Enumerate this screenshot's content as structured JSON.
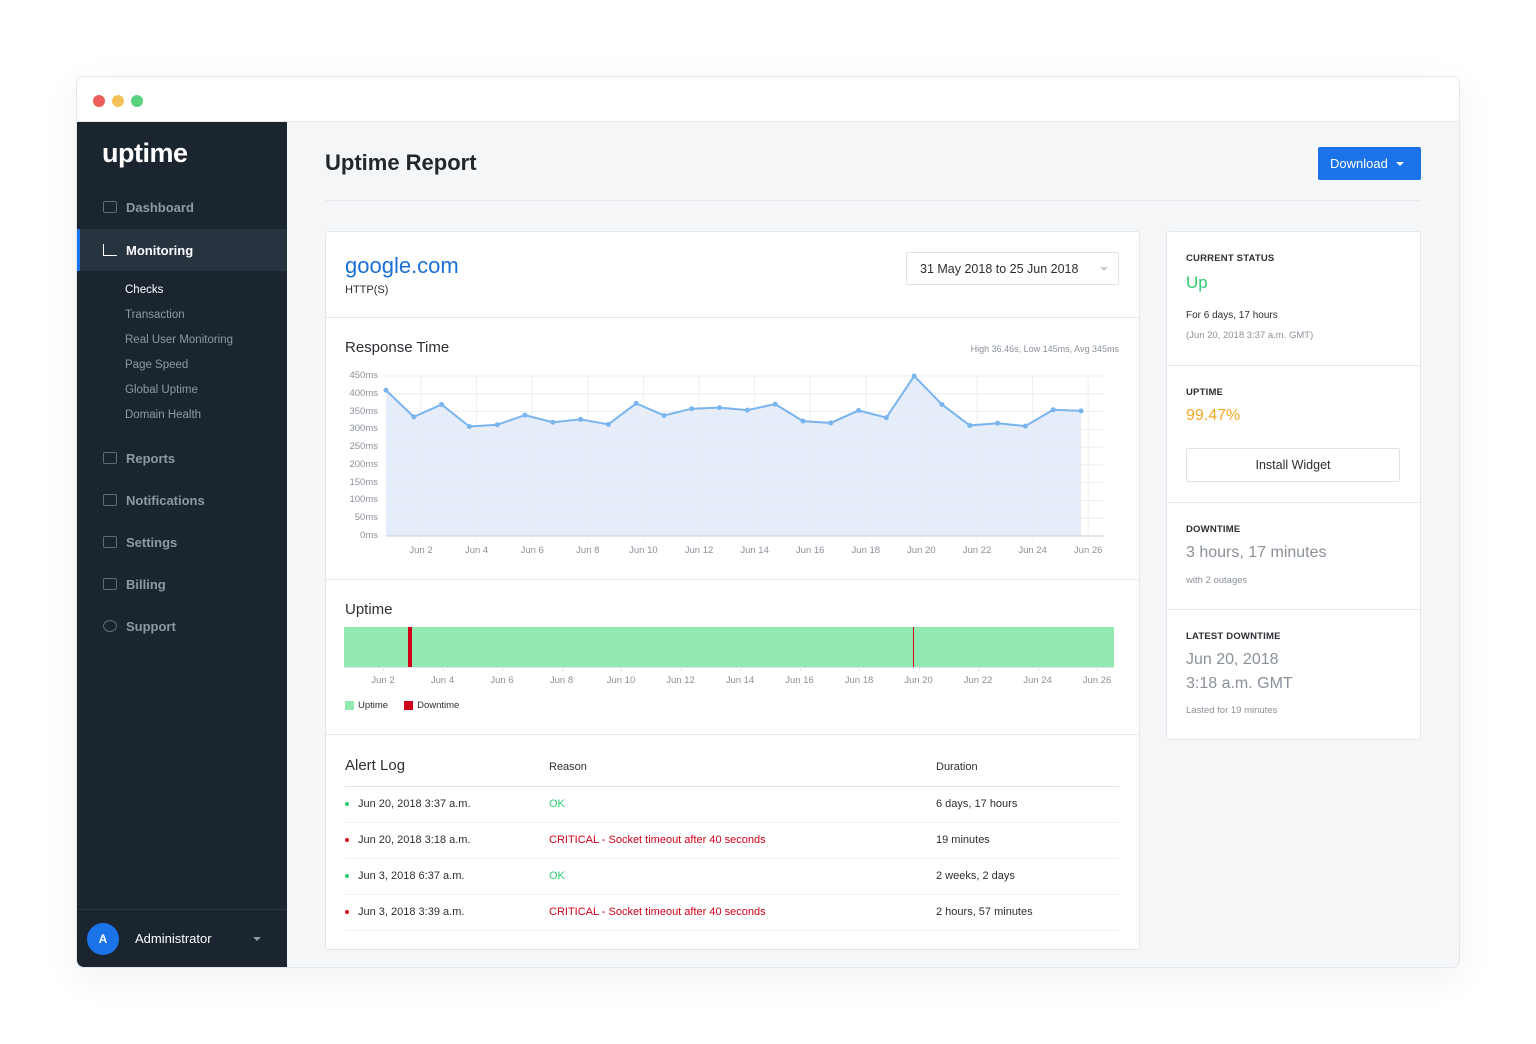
{
  "window": {
    "dots": [
      "#ee5f5b",
      "#f5c15a",
      "#5ad27d"
    ]
  },
  "sidebar": {
    "logo": "uptime",
    "items": [
      {
        "label": "Dashboard",
        "icon": "dashboard-icon"
      },
      {
        "label": "Monitoring",
        "icon": "bar-chart-icon",
        "active": true
      },
      {
        "label": "Reports",
        "icon": "reports-icon"
      },
      {
        "label": "Notifications",
        "icon": "chat-icon"
      },
      {
        "label": "Settings",
        "icon": "list-icon"
      },
      {
        "label": "Billing",
        "icon": "credit-card-icon"
      },
      {
        "label": "Support",
        "icon": "lifebuoy-icon"
      }
    ],
    "subitems": [
      "Checks",
      "Transaction",
      "Real User Monitoring",
      "Page Speed",
      "Global Uptime",
      "Domain Health"
    ],
    "user": {
      "initial": "A",
      "name": "Administrator"
    }
  },
  "header": {
    "title": "Uptime Report",
    "download": "Download"
  },
  "monitor": {
    "name": "google.com",
    "type": "HTTP(S)",
    "date_range": "31 May 2018 to 25 Jun 2018"
  },
  "response": {
    "title": "Response Time",
    "summary": "High 36.46s, Low 145ms, Avg 345ms"
  },
  "uptime_section": {
    "title": "Uptime",
    "legend": [
      "Uptime",
      "Downtime"
    ]
  },
  "colors": {
    "accent": "#1a73e8",
    "up": "#2ecc71",
    "uptime_bar": "#93e9b2",
    "down": "#d0021b",
    "uptime_pct": "#f5a623",
    "line": "#7ab4ef",
    "area": "#dfeaf8"
  },
  "chart_data": [
    {
      "type": "area",
      "title": "Response Time",
      "ylim": [
        0,
        450
      ],
      "yticks": [
        "450ms",
        "400ms",
        "350ms",
        "300ms",
        "250ms",
        "200ms",
        "150ms",
        "100ms",
        "50ms",
        "0ms"
      ],
      "xticks": [
        "Jun 2",
        "Jun 4",
        "Jun 6",
        "Jun 8",
        "Jun 10",
        "Jun 12",
        "Jun 14",
        "Jun 16",
        "Jun 18",
        "Jun 20",
        "Jun 22",
        "Jun 24",
        "Jun 26"
      ],
      "x": [
        "May 31",
        "Jun 1",
        "Jun 2",
        "Jun 3",
        "Jun 4",
        "Jun 5",
        "Jun 6",
        "Jun 7",
        "Jun 8",
        "Jun 9",
        "Jun 10",
        "Jun 11",
        "Jun 12",
        "Jun 13",
        "Jun 14",
        "Jun 15",
        "Jun 16",
        "Jun 17",
        "Jun 18",
        "Jun 19",
        "Jun 20",
        "Jun 21",
        "Jun 22",
        "Jun 23",
        "Jun 24",
        "Jun 25"
      ],
      "values": [
        410,
        335,
        370,
        308,
        313,
        340,
        320,
        328,
        314,
        373,
        339,
        358,
        361,
        354,
        371,
        323,
        318,
        353,
        333,
        450,
        370,
        311,
        317,
        309,
        355,
        352
      ],
      "grid": true
    },
    {
      "type": "timeline",
      "title": "Uptime",
      "xticks": [
        "Jun 2",
        "Jun 4",
        "Jun 6",
        "Jun 8",
        "Jun 10",
        "Jun 12",
        "Jun 14",
        "Jun 16",
        "Jun 18",
        "Jun 20",
        "Jun 22",
        "Jun 24",
        "Jun 26"
      ],
      "downtime": [
        {
          "start": "Jun 3, 2018 3:39 a.m.",
          "duration": "2 hours, 57 minutes"
        },
        {
          "start": "Jun 20, 2018 3:18 a.m.",
          "duration": "19 minutes"
        }
      ],
      "legend": [
        "Uptime",
        "Downtime"
      ]
    }
  ],
  "alert_log": {
    "title": "Alert Log",
    "columns": [
      "Reason",
      "Duration"
    ],
    "rows": [
      {
        "date": "Jun 20, 2018 3:37 a.m.",
        "reason": "OK",
        "duration": "6 days, 17 hours",
        "status": "ok"
      },
      {
        "date": "Jun 20, 2018 3:18 a.m.",
        "reason": "CRITICAL - Socket timeout after 40 seconds",
        "duration": "19 minutes",
        "status": "critical"
      },
      {
        "date": "Jun 3, 2018 6:37 a.m.",
        "reason": "OK",
        "duration": "2 weeks, 2 days",
        "status": "ok"
      },
      {
        "date": "Jun 3, 2018 3:39 a.m.",
        "reason": "CRITICAL - Socket timeout after 40 seconds",
        "duration": "2 hours, 57 minutes",
        "status": "critical"
      }
    ]
  },
  "status": {
    "current_label": "CURRENT STATUS",
    "current": "Up",
    "for": "For 6 days, 17 hours",
    "since": "(Jun 20, 2018 3:37 a.m. GMT)",
    "uptime_label": "UPTIME",
    "uptime": "99.47%",
    "install_widget": "Install Widget",
    "downtime_label": "DOWNTIME",
    "downtime": "3 hours, 17 minutes",
    "outages": "with 2 outages",
    "latest_label": "LATEST DOWNTIME",
    "latest_date": "Jun 20, 2018",
    "latest_time": "3:18 a.m. GMT",
    "lasted": "Lasted for 19 minutes"
  }
}
